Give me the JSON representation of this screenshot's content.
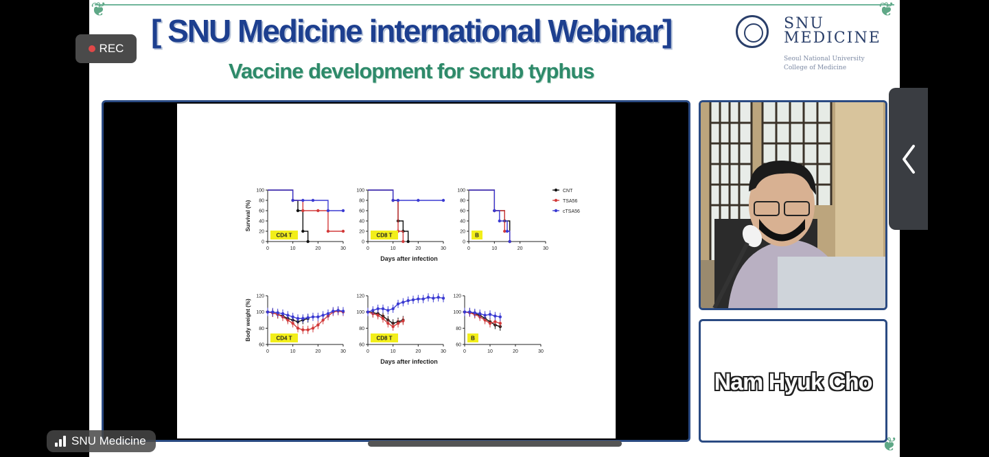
{
  "overlay": {
    "rec_label": "REC",
    "host_label": "SNU Medicine",
    "collapse_icon": "chevron-left-icon",
    "record_icon": "record-dot-icon",
    "signal_icon": "signal-bars-icon"
  },
  "slide": {
    "title": "[ SNU Medicine international Webinar]",
    "subtitle": "Vaccine development for scrub typhus",
    "logo": {
      "line1": "SNU",
      "line2": "MEDICINE",
      "sub1": "Seoul National University",
      "sub2": "College of Medicine"
    },
    "speaker_name": "Nam Hyuk Cho"
  },
  "colors": {
    "title": "#1d3f8f",
    "subtitle": "#2e8a6a",
    "frame_border": "#2a4a82",
    "series_cnt": "#111111",
    "series_tsa56": "#d23a3a",
    "series_ctsa56": "#3a3ad2",
    "panel_tag": "#f2ee1a"
  },
  "chart_data": [
    {
      "type": "line",
      "panel": "CD4 T",
      "ylabel": "Survival (%)",
      "ylim": [
        0,
        100
      ],
      "yticks": [
        "0",
        "20",
        "40",
        "60",
        "80",
        "100"
      ],
      "xlim": [
        0,
        30
      ],
      "xticks": [
        "0",
        "10",
        "20",
        "30"
      ],
      "series": [
        {
          "name": "CNT",
          "x": [
            0,
            10,
            12,
            14,
            16
          ],
          "y": [
            100,
            80,
            60,
            20,
            0
          ]
        },
        {
          "name": "TSA56",
          "x": [
            0,
            10,
            14,
            20,
            24,
            30
          ],
          "y": [
            100,
            80,
            60,
            60,
            20,
            20
          ]
        },
        {
          "name": "cTSA56",
          "x": [
            0,
            10,
            14,
            18,
            24,
            30
          ],
          "y": [
            100,
            80,
            80,
            80,
            60,
            60
          ]
        }
      ]
    },
    {
      "type": "line",
      "panel": "CD8 T",
      "ylim": [
        0,
        100
      ],
      "yticks": [
        "0",
        "20",
        "40",
        "60",
        "80",
        "100"
      ],
      "xlim": [
        0,
        30
      ],
      "xticks": [
        "0",
        "10",
        "20",
        "30"
      ],
      "xlabel": "Days after infection",
      "series": [
        {
          "name": "CNT",
          "x": [
            0,
            10,
            12,
            14,
            16
          ],
          "y": [
            100,
            80,
            40,
            20,
            0
          ]
        },
        {
          "name": "TSA56",
          "x": [
            0,
            10,
            12,
            14
          ],
          "y": [
            100,
            80,
            20,
            0
          ]
        },
        {
          "name": "cTSA56",
          "x": [
            0,
            10,
            12,
            20,
            30
          ],
          "y": [
            100,
            80,
            80,
            80,
            80
          ]
        }
      ]
    },
    {
      "type": "line",
      "panel": "B",
      "ylim": [
        0,
        100
      ],
      "yticks": [
        "0",
        "20",
        "40",
        "60",
        "80",
        "100"
      ],
      "xlim": [
        0,
        30
      ],
      "xticks": [
        "0",
        "10",
        "20",
        "30"
      ],
      "legend": [
        "CNT",
        "TSA56",
        "cTSA56"
      ],
      "series": [
        {
          "name": "CNT",
          "x": [
            0,
            10,
            14,
            16
          ],
          "y": [
            100,
            60,
            40,
            0
          ]
        },
        {
          "name": "TSA56",
          "x": [
            0,
            10,
            14,
            16
          ],
          "y": [
            100,
            60,
            20,
            0
          ]
        },
        {
          "name": "cTSA56",
          "x": [
            0,
            10,
            12,
            15,
            16
          ],
          "y": [
            100,
            60,
            40,
            20,
            0
          ]
        }
      ]
    },
    {
      "type": "line",
      "panel": "CD4 T",
      "ylabel": "Body weight (%)",
      "ylim": [
        60,
        120
      ],
      "yticks": [
        "60",
        "80",
        "100",
        "120"
      ],
      "xlim": [
        0,
        30
      ],
      "xticks": [
        "0",
        "10",
        "20",
        "30"
      ],
      "series": [
        {
          "name": "CNT",
          "x": [
            0,
            2,
            4,
            6,
            8,
            10,
            12,
            14,
            16
          ],
          "y": [
            100,
            99,
            97,
            95,
            92,
            90,
            88,
            90,
            92
          ]
        },
        {
          "name": "TSA56",
          "x": [
            0,
            2,
            4,
            6,
            8,
            10,
            12,
            14,
            16,
            18,
            20,
            22,
            24,
            26,
            28,
            30
          ],
          "y": [
            100,
            99,
            97,
            94,
            90,
            86,
            80,
            78,
            78,
            80,
            84,
            90,
            95,
            100,
            101,
            100
          ]
        },
        {
          "name": "cTSA56",
          "x": [
            0,
            2,
            4,
            6,
            8,
            10,
            12,
            14,
            16,
            18,
            20,
            22,
            24,
            26,
            28,
            30
          ],
          "y": [
            100,
            100,
            99,
            98,
            96,
            94,
            92,
            92,
            93,
            94,
            94,
            96,
            98,
            101,
            102,
            101
          ]
        }
      ]
    },
    {
      "type": "line",
      "panel": "CD8 T",
      "ylim": [
        60,
        120
      ],
      "yticks": [
        "60",
        "80",
        "100",
        "120"
      ],
      "xlim": [
        0,
        30
      ],
      "xticks": [
        "0",
        "10",
        "20",
        "30"
      ],
      "xlabel": "Days after infection",
      "series": [
        {
          "name": "CNT",
          "x": [
            0,
            2,
            4,
            6,
            8,
            10,
            12,
            14
          ],
          "y": [
            100,
            99,
            98,
            95,
            90,
            86,
            88,
            90
          ]
        },
        {
          "name": "TSA56",
          "x": [
            0,
            2,
            4,
            6,
            8,
            10,
            12,
            14
          ],
          "y": [
            100,
            98,
            96,
            92,
            86,
            82,
            86,
            89
          ]
        },
        {
          "name": "cTSA56",
          "x": [
            0,
            2,
            4,
            6,
            8,
            10,
            12,
            14,
            16,
            18,
            20,
            22,
            24,
            26,
            28,
            30
          ],
          "y": [
            100,
            102,
            104,
            104,
            102,
            104,
            110,
            112,
            114,
            115,
            116,
            116,
            118,
            117,
            118,
            117
          ]
        }
      ]
    },
    {
      "type": "line",
      "panel": "B",
      "ylim": [
        60,
        120
      ],
      "yticks": [
        "60",
        "80",
        "100",
        "120"
      ],
      "xlim": [
        0,
        30
      ],
      "xticks": [
        "0",
        "10",
        "20",
        "30"
      ],
      "series": [
        {
          "name": "CNT",
          "x": [
            0,
            2,
            4,
            6,
            8,
            10,
            12,
            14
          ],
          "y": [
            100,
            100,
            98,
            96,
            92,
            88,
            84,
            82
          ]
        },
        {
          "name": "TSA56",
          "x": [
            0,
            2,
            4,
            6,
            8,
            10,
            12,
            14
          ],
          "y": [
            100,
            99,
            97,
            94,
            90,
            86,
            88,
            86
          ]
        },
        {
          "name": "cTSA56",
          "x": [
            0,
            2,
            4,
            6,
            8,
            10,
            12,
            14
          ],
          "y": [
            100,
            100,
            99,
            98,
            96,
            97,
            95,
            94
          ]
        }
      ]
    }
  ]
}
